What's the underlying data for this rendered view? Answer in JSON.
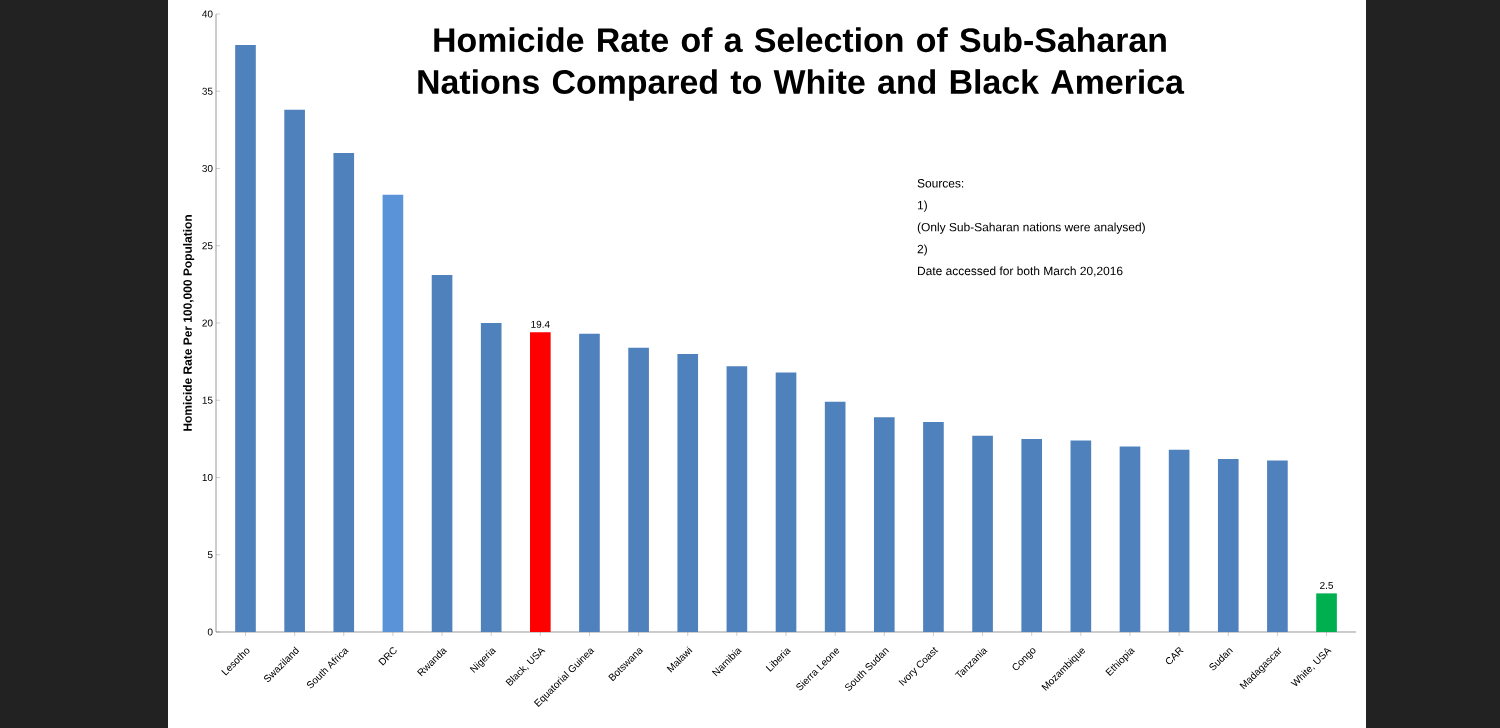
{
  "chart_data": {
    "type": "bar",
    "title": "Homicide Rate of a Selection of Sub-Saharan Nations Compared to White and Black America",
    "ylabel": "Homicide Rate Per 100,000  Population",
    "categories": [
      "Lesotho",
      "Swaziland",
      "South Africa",
      "DRC",
      "Rwanda",
      "Nigeria",
      "Black, USA",
      "Equatorial Guinea",
      "Botswana",
      "Malawi",
      "Namibia",
      "Liberia",
      "Sierra Leone",
      "South Sudan",
      "Ivory Coast",
      "Tanzania",
      "Congo",
      "Mozambique",
      "Ethiopia",
      "CAR",
      "Sudan",
      "Madagascar",
      "White, USA"
    ],
    "values": [
      38,
      33.8,
      31.0,
      28.3,
      23.1,
      20.0,
      19.4,
      19.3,
      18.4,
      18.0,
      17.2,
      16.8,
      14.9,
      13.9,
      13.6,
      12.7,
      12.5,
      12.4,
      12.0,
      11.8,
      11.2,
      11.1,
      2.5
    ],
    "value_labels": [
      null,
      null,
      null,
      null,
      null,
      null,
      "19.4",
      null,
      null,
      null,
      null,
      null,
      null,
      null,
      null,
      null,
      null,
      null,
      null,
      null,
      null,
      null,
      "2.5"
    ],
    "colors": [
      "#4f81bd",
      "#4f81bd",
      "#4f81bd",
      "#5b93d8",
      "#4f81bd",
      "#4f81bd",
      "#ff0000",
      "#4f81bd",
      "#4f81bd",
      "#4f81bd",
      "#4f81bd",
      "#4f81bd",
      "#4f81bd",
      "#4f81bd",
      "#4f81bd",
      "#4f81bd",
      "#4f81bd",
      "#4f81bd",
      "#4f81bd",
      "#4f81bd",
      "#4f81bd",
      "#4f81bd",
      "#00b050"
    ],
    "ylim": [
      0,
      40
    ],
    "yticks": [
      0,
      5,
      10,
      15,
      20,
      25,
      30,
      35,
      40
    ],
    "annotations": [
      "Sources:",
      "1)",
      "(Only Sub-Saharan nations were analysed)",
      "2)",
      "Date accessed for both March 20,2016"
    ]
  }
}
